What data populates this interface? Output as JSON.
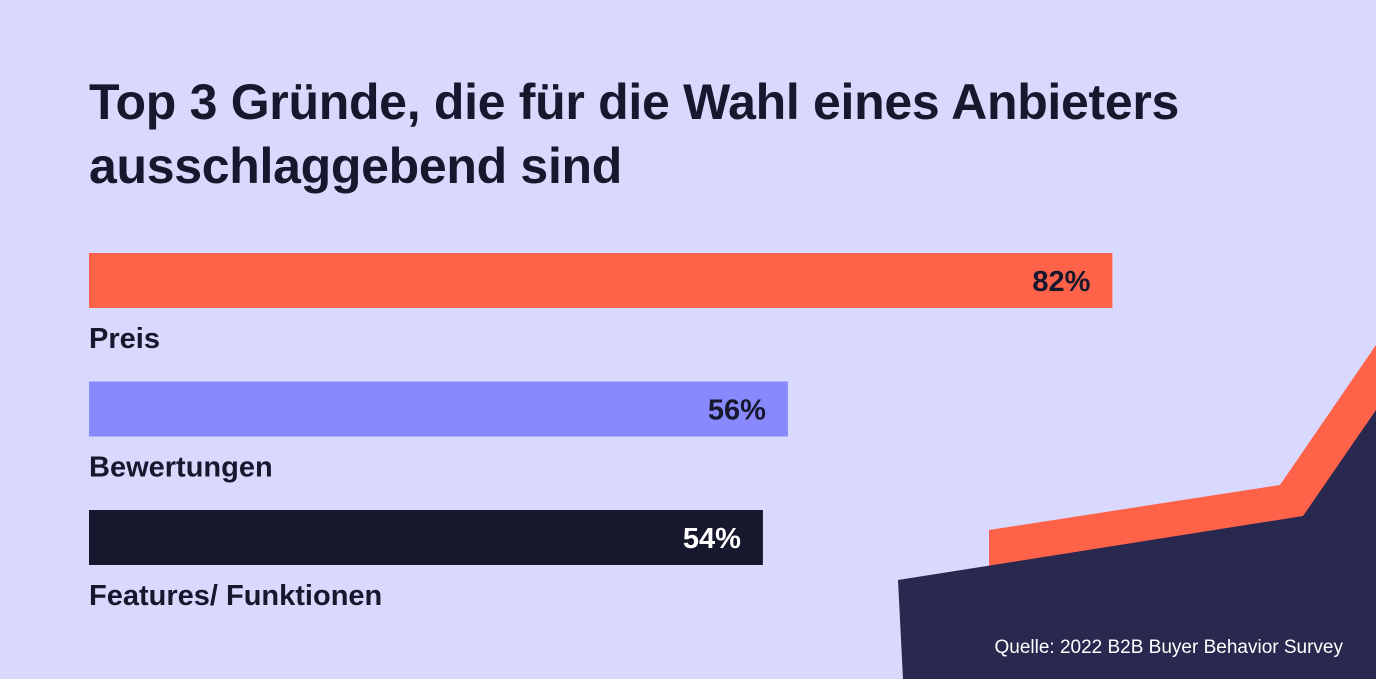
{
  "header": {
    "title": "Top 3 Gründe, die für die Wahl eines Anbieters ausschlaggebend sind"
  },
  "footer": {
    "source": "Quelle: 2022 B2B Buyer Behavior Survey"
  },
  "colors": {
    "background": "#d9d8fd",
    "text_dark": "#17172e",
    "coral": "#fe634a",
    "lavender": "#8889fd",
    "navy": "#17172e",
    "deco_navy": "#29284f",
    "white": "#ffffff"
  },
  "chart_data": {
    "type": "bar",
    "orientation": "horizontal",
    "title": "Top 3 Gründe, die für die Wahl eines Anbieters ausschlaggebend sind",
    "categories": [
      "Preis",
      "Bewertungen",
      "Features/ Funktionen"
    ],
    "values": [
      82,
      56,
      54
    ],
    "value_labels": [
      "82%",
      "56%",
      "54%"
    ],
    "bar_colors": [
      "#fe634a",
      "#8889fd",
      "#17172e"
    ],
    "label_colors": [
      "#17172e",
      "#17172e",
      "#ffffff"
    ],
    "unit": "%",
    "xlim": [
      0,
      100
    ],
    "grid": false,
    "legend": "none"
  }
}
